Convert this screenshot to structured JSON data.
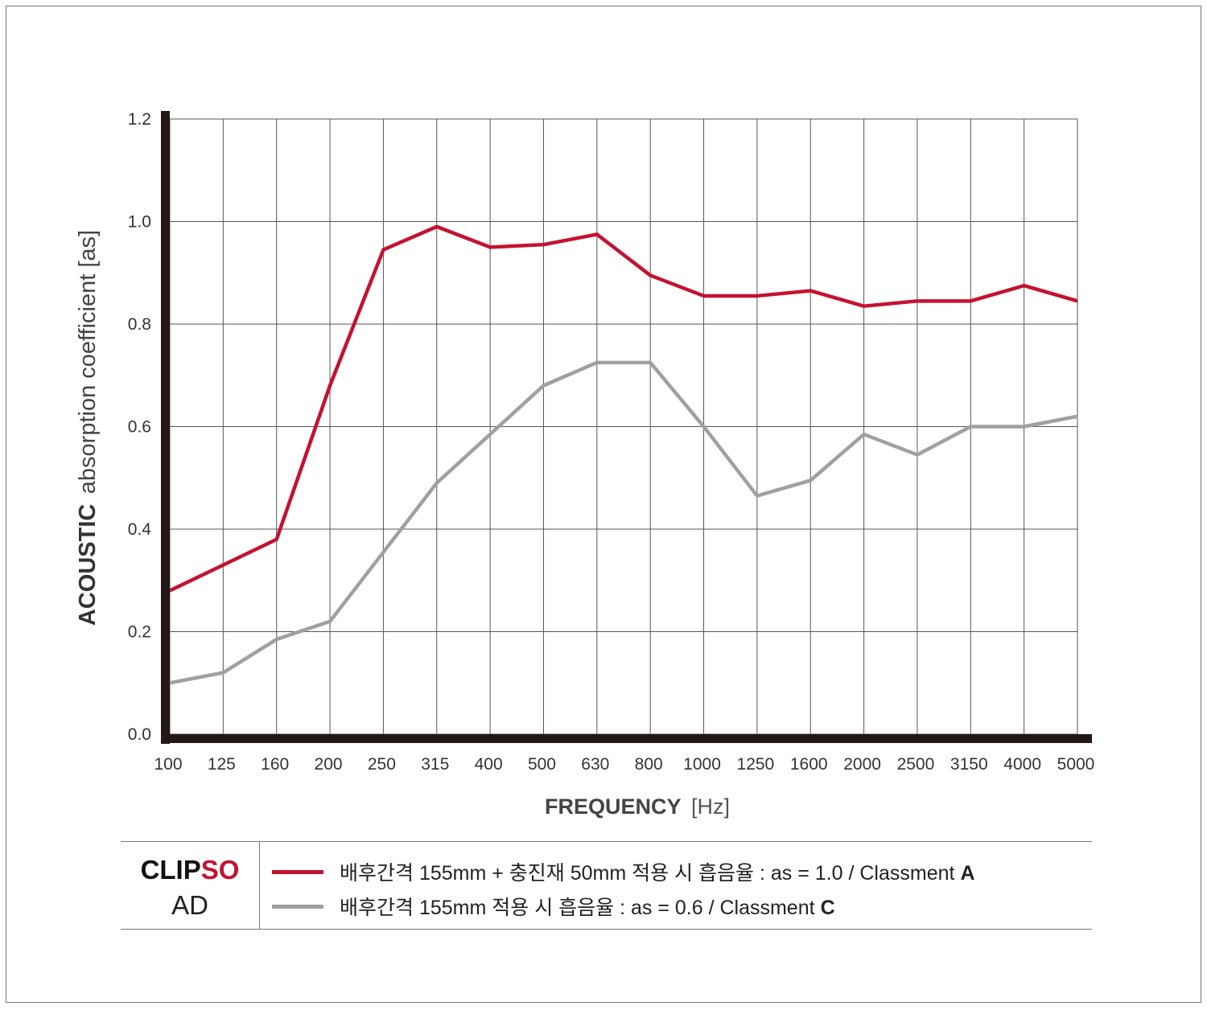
{
  "chart_data": {
    "type": "line",
    "categories": [
      "100",
      "125",
      "160",
      "200",
      "250",
      "315",
      "400",
      "500",
      "630",
      "800",
      "1000",
      "1250",
      "1600",
      "2000",
      "2500",
      "3150",
      "4000",
      "5000"
    ],
    "y_ticks": [
      "0.0",
      "0.2",
      "0.4",
      "0.6",
      "0.8",
      "1.0",
      "1.2"
    ],
    "ylim": [
      0,
      1.2
    ],
    "grid": true,
    "ylabel_bold": "ACOUSTIC",
    "ylabel_rest": "absorption coefficient [as]",
    "xlabel_bold": "FREQUENCY",
    "xlabel_rest": "[Hz]",
    "series": [
      {
        "name": "배후간격 155mm + 충진재 50mm 적용 시 흡음율 : as = 1.0 / Classment A",
        "color": "#c41230",
        "values": [
          0.28,
          0.33,
          0.38,
          0.68,
          0.945,
          0.99,
          0.95,
          0.955,
          0.975,
          0.895,
          0.855,
          0.855,
          0.865,
          0.835,
          0.845,
          0.845,
          0.875,
          0.845
        ]
      },
      {
        "name": "배후간격 155mm 적용 시 흡음율 : as = 0.6 / Classment C",
        "color": "#a0a0a0",
        "values": [
          0.1,
          0.12,
          0.185,
          0.22,
          0.355,
          0.49,
          0.585,
          0.68,
          0.725,
          0.725,
          0.6,
          0.465,
          0.495,
          0.585,
          0.545,
          0.6,
          0.6,
          0.62
        ]
      }
    ]
  },
  "legend": {
    "brand_part1": "CLIP",
    "brand_part2": "SO",
    "brand_sub": "AD",
    "entries": [
      {
        "text": "배후간격 155mm + 충진재 50mm 적용 시 흡음율  : as = 1.0 / Classment",
        "class": "A"
      },
      {
        "text": "배후간격 155mm 적용 시 흡음율 : as = 0.6 / Classment",
        "class": "C"
      }
    ]
  }
}
